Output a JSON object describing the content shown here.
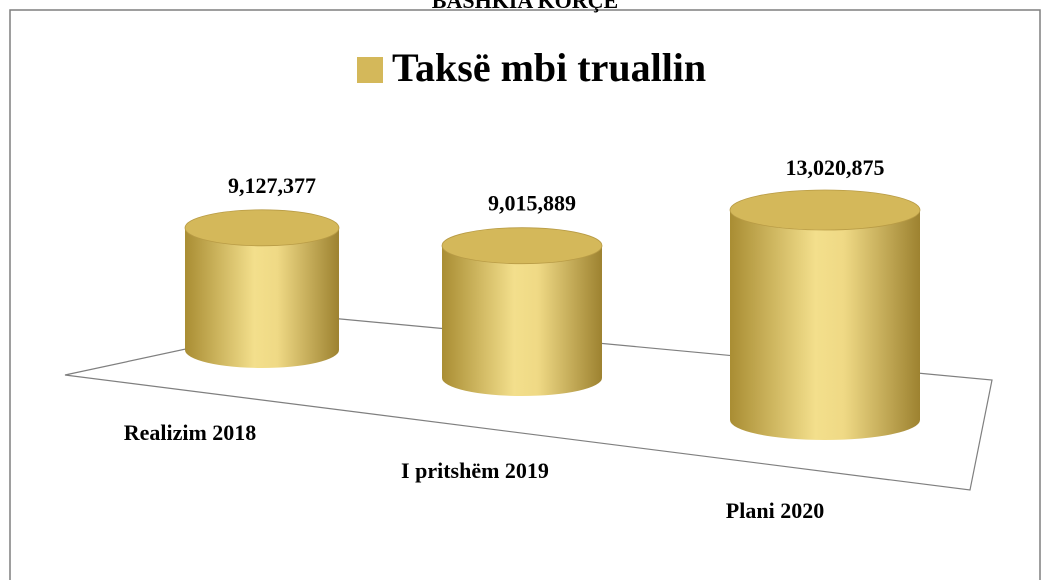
{
  "page_header": "BASHKIA KORÇË",
  "chart_data": {
    "type": "bar",
    "categories": [
      "Realizim 2018",
      "I pritshëm 2019",
      "Plani 2020"
    ],
    "series": [
      {
        "name": "Taksë mbi truallin",
        "color": "#d4b85a",
        "values": [
          9127377,
          9015889,
          13020875
        ],
        "value_labels": [
          "9,127,377",
          "9,015,889",
          "13,020,875"
        ]
      }
    ]
  }
}
